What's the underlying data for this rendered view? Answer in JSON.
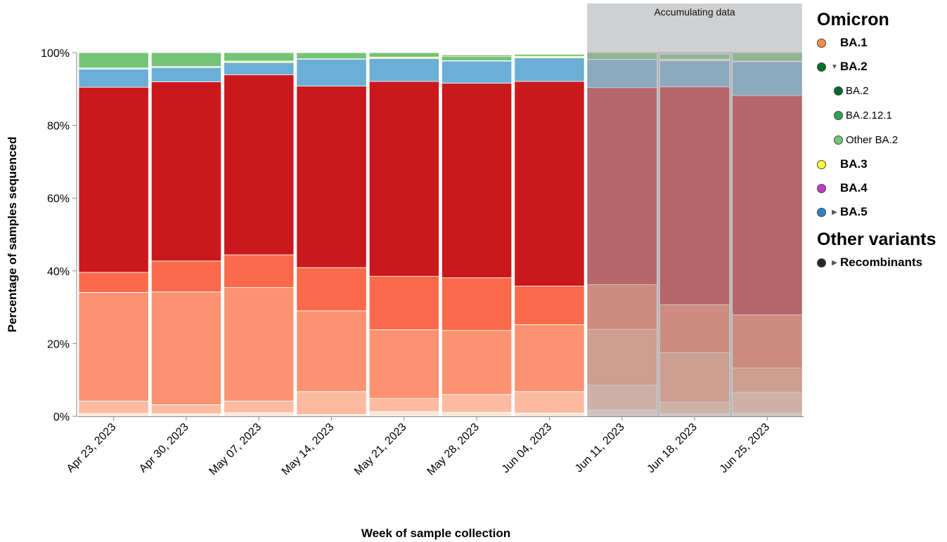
{
  "chart_data": {
    "type": "bar",
    "stacked": true,
    "x_label": "Week of sample collection",
    "y_label": "Percentage of samples sequenced",
    "ylim": [
      0,
      100
    ],
    "y_ticks": [
      "0%",
      "20%",
      "40%",
      "60%",
      "80%",
      "100%"
    ],
    "grid": false,
    "categories": [
      "Apr 23, 2023",
      "Apr 30, 2023",
      "May 07, 2023",
      "May 14, 2023",
      "May 21, 2023",
      "May 28, 2023",
      "Jun 04, 2023",
      "Jun 11, 2023",
      "Jun 18, 2023",
      "Jun 25, 2023"
    ],
    "accumulating_data": {
      "label": "Accumulating data",
      "categories": [
        "Jun 11, 2023",
        "Jun 18, 2023",
        "Jun 25, 2023"
      ]
    },
    "series": [
      {
        "color": "#fee5d9",
        "values": [
          0.8,
          0.7,
          1.0,
          0.5,
          1.3,
          1.1,
          0.9,
          1.8,
          0.8,
          0.9
        ]
      },
      {
        "color": "#fcbba1",
        "values": [
          3.4,
          2.5,
          3.2,
          6.3,
          3.6,
          4.9,
          5.9,
          6.8,
          3.1,
          5.7
        ]
      },
      {
        "color": "#fc9272",
        "values": [
          29.9,
          31.0,
          31.2,
          22.2,
          18.9,
          17.6,
          18.4,
          15.3,
          13.6,
          6.7
        ]
      },
      {
        "color": "#fb6a4a",
        "values": [
          5.5,
          8.5,
          9.0,
          11.9,
          14.7,
          14.5,
          10.6,
          12.3,
          13.2,
          14.6
        ]
      },
      {
        "color": "#cb181d",
        "values": [
          50.9,
          49.3,
          49.5,
          49.9,
          53.6,
          53.5,
          56.3,
          54.2,
          59.9,
          60.3
        ]
      },
      {
        "color": "#6baed6",
        "values": [
          5.0,
          3.9,
          3.4,
          7.4,
          6.3,
          6.1,
          6.5,
          7.7,
          7.2,
          9.3
        ]
      },
      {
        "color": "#e2e2e2",
        "values": [
          0.3,
          0.3,
          0.1,
          0.1,
          0.1,
          0.1,
          0.1,
          0.1,
          0.1,
          0.2
        ]
      },
      {
        "color": "#ffff33",
        "values": [
          0.0,
          0.0,
          0.3,
          0.0,
          0.3,
          0.0,
          0.3,
          0.0,
          0.3,
          0.0
        ]
      },
      {
        "color": "#74c476",
        "values": [
          4.2,
          3.8,
          2.3,
          1.7,
          1.2,
          1.2,
          0.5,
          1.8,
          1.4,
          2.3
        ]
      },
      {
        "color": "#41ab5d",
        "values": [
          0.0,
          0.0,
          0.0,
          0.0,
          0.0,
          0.3,
          0.2,
          0.0,
          0.0,
          0.0
        ]
      },
      {
        "color": "#fd8d3c",
        "values": [
          0.0,
          0.0,
          0.0,
          0.0,
          0.0,
          0.2,
          0.0,
          0.0,
          0.0,
          0.0
        ]
      }
    ]
  },
  "legend": {
    "omicron_heading": "Omicron",
    "other_heading": "Other variants",
    "ba1": {
      "label": "BA.1",
      "color": "#fd8d3c"
    },
    "ba2": {
      "label": "BA.2",
      "color": "#006d2c",
      "caret": "▼"
    },
    "ba2_sub": {
      "label": "BA.2",
      "color": "#006d2c"
    },
    "ba2121": {
      "label": "BA.2.12.1",
      "color": "#31a354"
    },
    "other_ba2": {
      "label": "Other BA.2",
      "color": "#74c476"
    },
    "ba3": {
      "label": "BA.3",
      "color": "#ffff33"
    },
    "ba4": {
      "label": "BA.4",
      "color": "#c03cc0"
    },
    "ba5": {
      "label": "BA.5",
      "color": "#3182bd",
      "caret": "▶"
    },
    "recombinants": {
      "label": "Recombinants",
      "color": "#252525",
      "caret": "▶"
    }
  }
}
